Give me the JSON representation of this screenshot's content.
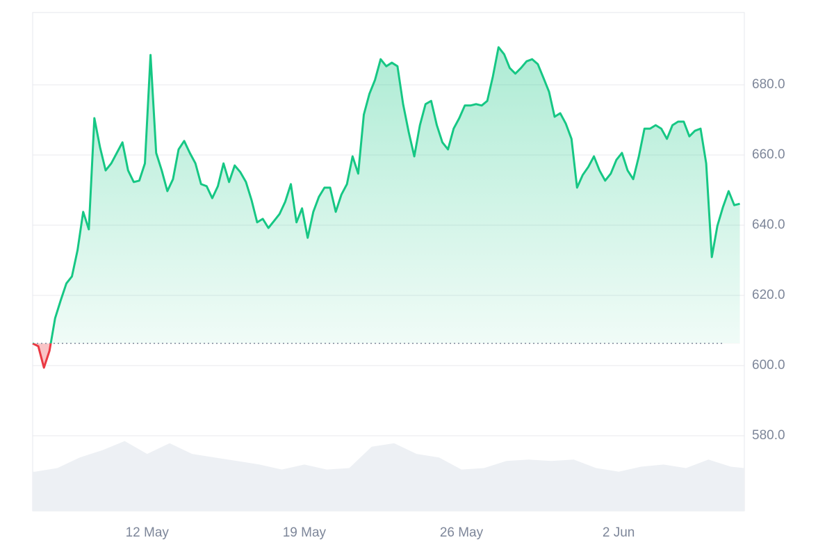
{
  "chart_data": {
    "type": "line",
    "color": "#16c784",
    "down_color": "#ea3943",
    "baseline": 606.3,
    "grid": true,
    "xlim": [
      6.9,
      38.6
    ],
    "ylim": [
      558.6,
      700.6
    ],
    "xticks": [
      {
        "value": 12,
        "label": "12 May"
      },
      {
        "value": 19,
        "label": "19 May"
      },
      {
        "value": 26,
        "label": "26 May"
      },
      {
        "value": 33,
        "label": "2 Jun"
      }
    ],
    "yticks": [
      {
        "value": 580,
        "label": "580.0"
      },
      {
        "value": 600,
        "label": "600.0"
      },
      {
        "value": 620,
        "label": "620.0"
      },
      {
        "value": 640,
        "label": "640.0"
      },
      {
        "value": 660,
        "label": "660.0"
      },
      {
        "value": 680,
        "label": "680.0"
      }
    ],
    "x": [
      6.9,
      7.15,
      7.4,
      7.65,
      7.9,
      8.15,
      8.4,
      8.65,
      8.9,
      9.15,
      9.4,
      9.65,
      9.9,
      10.15,
      10.4,
      10.65,
      10.9,
      11.15,
      11.4,
      11.65,
      11.9,
      12.15,
      12.4,
      12.65,
      12.9,
      13.15,
      13.4,
      13.65,
      13.9,
      14.15,
      14.4,
      14.65,
      14.9,
      15.15,
      15.4,
      15.65,
      15.9,
      16.15,
      16.4,
      16.65,
      16.9,
      17.15,
      17.4,
      17.65,
      17.9,
      18.15,
      18.4,
      18.65,
      18.9,
      19.15,
      19.4,
      19.65,
      19.9,
      20.15,
      20.4,
      20.65,
      20.9,
      21.15,
      21.4,
      21.65,
      21.9,
      22.15,
      22.4,
      22.65,
      22.9,
      23.15,
      23.4,
      23.65,
      23.9,
      24.15,
      24.4,
      24.65,
      24.9,
      25.15,
      25.4,
      25.65,
      25.9,
      26.15,
      26.4,
      26.65,
      26.9,
      27.15,
      27.4,
      27.65,
      27.9,
      28.15,
      28.4,
      28.65,
      28.9,
      29.15,
      29.4,
      29.65,
      29.9,
      30.15,
      30.4,
      30.65,
      30.9,
      31.15,
      31.4,
      31.65,
      31.9,
      32.15,
      32.4,
      32.65,
      32.9,
      33.15,
      33.4,
      33.65,
      33.9,
      34.15,
      34.4,
      34.65,
      34.9,
      35.15,
      35.4,
      35.65,
      35.9,
      36.15,
      36.4,
      36.65,
      36.9,
      37.15,
      37.4,
      37.65,
      37.9,
      38.15,
      38.4
    ],
    "values": [
      606.3,
      605.5,
      599.4,
      604.2,
      613.5,
      618.6,
      623.4,
      625.4,
      632.9,
      643.8,
      638.8,
      670.5,
      662.2,
      655.6,
      657.6,
      660.6,
      663.6,
      655.6,
      652.3,
      652.7,
      657.6,
      688.5,
      660.6,
      655.6,
      649.7,
      653.1,
      661.6,
      664.0,
      660.6,
      657.6,
      651.7,
      651.1,
      647.7,
      651.1,
      657.6,
      652.3,
      657.0,
      655.1,
      652.3,
      647.1,
      640.8,
      641.8,
      639.2,
      641.2,
      643.2,
      646.7,
      651.7,
      640.8,
      644.8,
      636.4,
      643.8,
      648.1,
      650.7,
      650.7,
      643.8,
      648.7,
      651.7,
      659.6,
      654.7,
      671.5,
      677.4,
      681.4,
      687.3,
      685.3,
      686.3,
      685.3,
      674.5,
      666.5,
      659.6,
      668.5,
      674.5,
      675.4,
      668.5,
      663.6,
      661.6,
      667.5,
      670.5,
      674.1,
      674.1,
      674.5,
      674.1,
      675.4,
      682.4,
      690.7,
      688.7,
      684.8,
      683.2,
      684.8,
      686.7,
      687.3,
      685.9,
      682.0,
      678.0,
      670.9,
      671.9,
      668.9,
      664.6,
      650.7,
      654.3,
      656.6,
      659.6,
      655.6,
      652.7,
      654.7,
      658.6,
      660.6,
      655.6,
      653.1,
      659.6,
      667.5,
      667.5,
      668.5,
      667.5,
      664.6,
      668.5,
      669.5,
      669.5,
      665.3,
      666.9,
      667.5,
      657.6,
      630.9,
      639.8,
      645.2,
      649.7,
      645.7,
      646.1
    ],
    "volume": {
      "color": "#edf0f4",
      "ylim": [
        0,
        700
      ],
      "x": [
        6.9,
        7,
        8,
        9,
        10,
        11,
        12,
        13,
        14,
        15,
        16,
        17,
        18,
        19,
        20,
        21,
        22,
        23,
        24,
        25,
        26,
        27,
        28,
        29,
        30,
        31,
        32,
        33,
        34,
        35,
        36,
        37,
        38,
        38.6
      ],
      "values": [
        55,
        55,
        60,
        75,
        85,
        98,
        80,
        95,
        80,
        75,
        70,
        65,
        58,
        65,
        58,
        60,
        90,
        95,
        80,
        75,
        58,
        60,
        70,
        72,
        70,
        72,
        60,
        55,
        62,
        65,
        60,
        72,
        62,
        60
      ]
    }
  }
}
